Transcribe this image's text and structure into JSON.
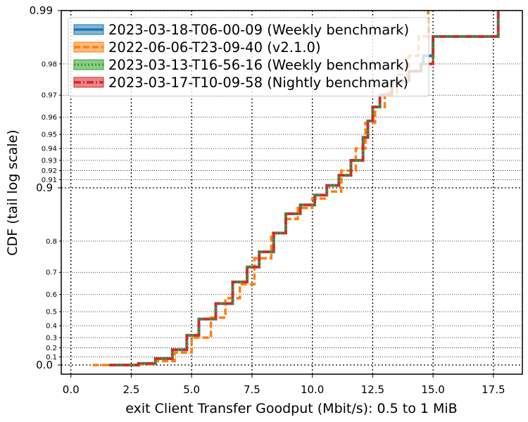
{
  "chart_data": {
    "type": "line",
    "xlabel": "exit Client Transfer Goodput (Mbit/s): 0.5 to 1 MiB",
    "ylabel": "CDF (tail log scale)",
    "xlim": [
      -0.4,
      18.7
    ],
    "ylim": [
      0.0,
      0.99
    ],
    "y_scale": "tail log",
    "grid": true,
    "legend_position": "top-left",
    "x_ticks": [
      "0.0",
      "2.5",
      "5.0",
      "7.5",
      "10.0",
      "12.5",
      "15.0",
      "17.5"
    ],
    "x_tick_values": [
      0,
      2.5,
      5,
      7.5,
      10,
      12.5,
      15,
      17.5
    ],
    "y_major_ticks": [
      "0.0",
      "0.9",
      "0.99"
    ],
    "y_major_values": [
      0.0,
      0.9,
      0.99
    ],
    "y_minor_ticks": [
      "0.1",
      "0.2",
      "0.3",
      "0.4",
      "0.5",
      "0.6",
      "0.7",
      "0.8",
      "0.91",
      "0.92",
      "0.93",
      "0.94",
      "0.95",
      "0.96",
      "0.97",
      "0.98"
    ],
    "y_minor_values": [
      0.1,
      0.2,
      0.3,
      0.4,
      0.5,
      0.6,
      0.7,
      0.8,
      0.91,
      0.92,
      0.93,
      0.94,
      0.95,
      0.96,
      0.97,
      0.98
    ],
    "series": [
      {
        "name": "2023-03-18-T06-00-09 (Weekly benchmark)",
        "color": "#1f77b4",
        "style": "solid",
        "x": [
          1.6,
          2.8,
          3.5,
          4.2,
          4.8,
          5.3,
          6.0,
          6.7,
          7.3,
          7.8,
          8.4,
          8.9,
          9.5,
          10.1,
          10.6,
          11.1,
          11.6,
          12.1,
          12.3,
          12.5,
          12.8,
          13.3,
          14.0,
          14.5,
          14.6,
          15.0,
          17.6,
          17.7
        ],
        "y": [
          0.0,
          0.02,
          0.08,
          0.18,
          0.32,
          0.45,
          0.55,
          0.66,
          0.72,
          0.77,
          0.82,
          0.86,
          0.875,
          0.89,
          0.903,
          0.915,
          0.93,
          0.948,
          0.958,
          0.965,
          0.97,
          0.975,
          0.978,
          0.98,
          0.982,
          0.986,
          0.986,
          0.99
        ]
      },
      {
        "name": "2022-06-06-T23-09-40 (v2.1.0)",
        "color": "#ff7f0e",
        "style": "dashed",
        "x": [
          0.9,
          2.8,
          3.5,
          4.3,
          5.0,
          5.8,
          6.4,
          7.0,
          7.6,
          8.3,
          8.9,
          9.4,
          10.0,
          10.6,
          11.2,
          11.8,
          12.2,
          12.6,
          13.0,
          13.5,
          14.0,
          14.4,
          14.8
        ],
        "y": [
          0.0,
          0.01,
          0.05,
          0.15,
          0.3,
          0.46,
          0.58,
          0.65,
          0.75,
          0.82,
          0.85,
          0.87,
          0.885,
          0.895,
          0.92,
          0.94,
          0.957,
          0.965,
          0.971,
          0.977,
          0.982,
          0.986,
          0.99
        ]
      },
      {
        "name": "2023-03-13-T16-56-16 (Weekly benchmark)",
        "color": "#2ca02c",
        "style": "dotted",
        "x": [
          1.6,
          2.8,
          3.5,
          4.2,
          4.8,
          5.3,
          6.0,
          6.7,
          7.3,
          7.8,
          8.4,
          8.9,
          9.5,
          10.1,
          10.6,
          11.1,
          11.6,
          12.1,
          12.3,
          12.5,
          12.8,
          13.3,
          14.0,
          14.5,
          15.0,
          17.6,
          17.7
        ],
        "y": [
          0.0,
          0.02,
          0.08,
          0.18,
          0.32,
          0.45,
          0.55,
          0.66,
          0.72,
          0.77,
          0.82,
          0.86,
          0.875,
          0.89,
          0.903,
          0.915,
          0.93,
          0.948,
          0.958,
          0.965,
          0.97,
          0.975,
          0.978,
          0.98,
          0.986,
          0.986,
          0.99
        ]
      },
      {
        "name": "2023-03-17-T10-09-58 (Nightly benchmark)",
        "color": "#d62728",
        "style": "dashdot",
        "x": [
          1.6,
          2.8,
          3.5,
          4.2,
          4.8,
          5.3,
          6.0,
          6.7,
          7.3,
          7.8,
          8.4,
          8.9,
          9.5,
          10.1,
          10.6,
          11.1,
          11.6,
          12.1,
          12.3,
          12.5,
          12.8,
          13.3,
          14.0,
          14.5,
          15.0,
          17.6,
          17.7
        ],
        "y": [
          0.0,
          0.02,
          0.08,
          0.18,
          0.32,
          0.45,
          0.55,
          0.66,
          0.72,
          0.77,
          0.82,
          0.86,
          0.875,
          0.89,
          0.903,
          0.915,
          0.93,
          0.948,
          0.958,
          0.965,
          0.97,
          0.975,
          0.978,
          0.98,
          0.986,
          0.986,
          0.99
        ]
      }
    ]
  }
}
